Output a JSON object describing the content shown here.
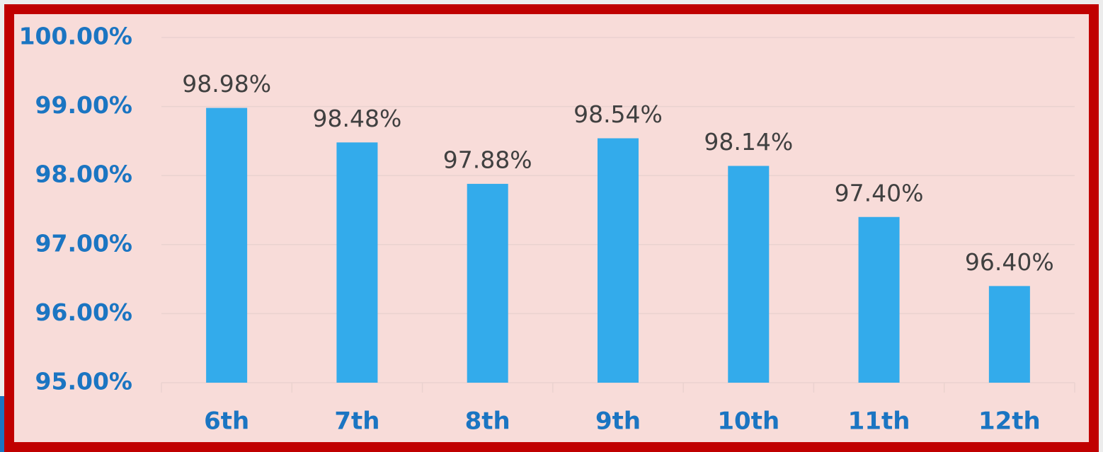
{
  "chart_data": {
    "type": "bar",
    "categories": [
      "6th",
      "7th",
      "8th",
      "9th",
      "10th",
      "11th",
      "12th"
    ],
    "values": [
      98.98,
      98.48,
      97.88,
      98.54,
      98.14,
      97.4,
      96.4
    ],
    "value_labels": [
      "98.98%",
      "98.48%",
      "97.88%",
      "98.54%",
      "98.14%",
      "97.40%",
      "96.40%"
    ],
    "color": "#33abeb",
    "ylim": [
      95,
      100
    ],
    "yticks": [
      {
        "value": 95,
        "label": "95.00%"
      },
      {
        "value": 96,
        "label": "96.00%"
      },
      {
        "value": 97,
        "label": "97.00%"
      },
      {
        "value": 98,
        "label": "98.00%"
      },
      {
        "value": 99,
        "label": "99.00%"
      },
      {
        "value": 100,
        "label": "100.00%"
      }
    ],
    "grid": true
  }
}
